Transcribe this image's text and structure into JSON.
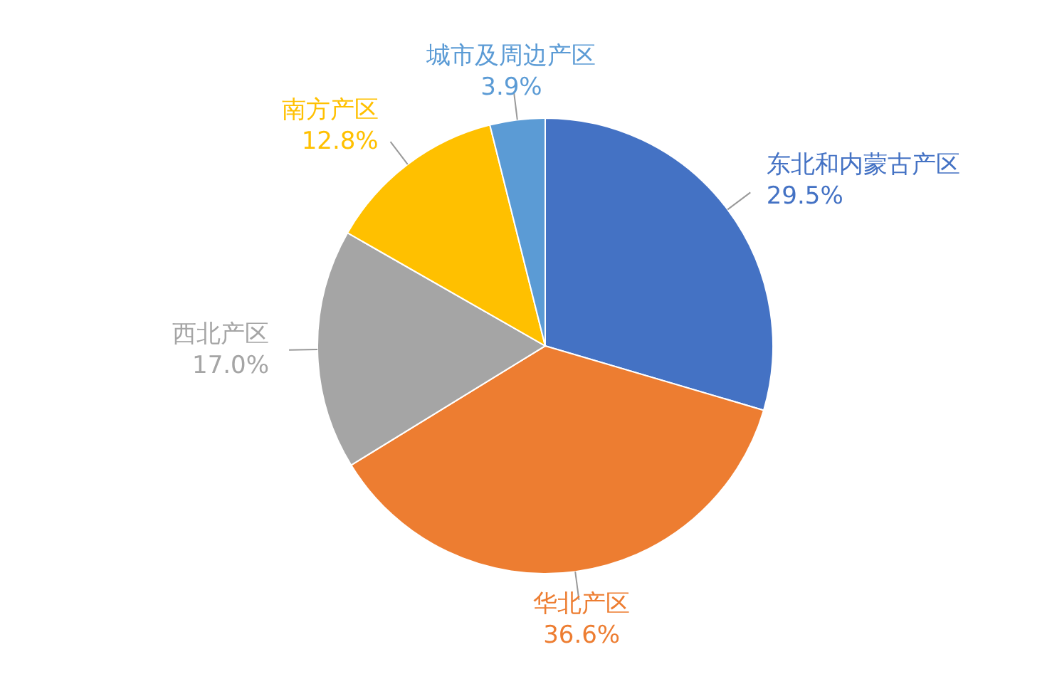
{
  "chart_data": {
    "type": "pie",
    "categories": [
      "东北和内蒙古产区",
      "华北产区",
      "西北产区",
      "南方产区",
      "城市及周边产区"
    ],
    "values": [
      29.5,
      36.6,
      17.0,
      12.8,
      3.9
    ],
    "colors": [
      "#4472c4",
      "#ed7d31",
      "#a5a5a5",
      "#ffc000",
      "#5b9bd5"
    ],
    "value_labels": [
      "29.5%",
      "36.6%",
      "17.0%",
      "12.8%",
      "3.9%"
    ],
    "legend": false
  }
}
